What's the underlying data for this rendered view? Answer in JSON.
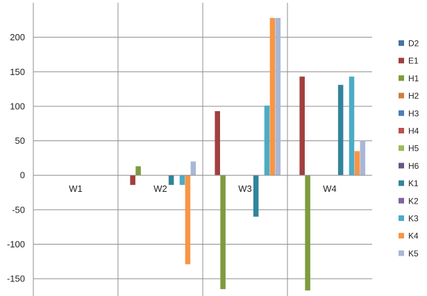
{
  "chart_data": {
    "type": "bar",
    "title": "",
    "xlabel": "",
    "ylabel": "",
    "categories": [
      "W1",
      "W2",
      "W3",
      "W4"
    ],
    "ylim": [
      -175,
      250
    ],
    "yticks": [
      -150,
      -100,
      -50,
      0,
      50,
      100,
      150,
      200
    ],
    "grid": true,
    "legend_position": "right",
    "series": [
      {
        "name": "D2",
        "color": "#4472A8",
        "values": [
          0,
          0,
          0,
          0
        ]
      },
      {
        "name": "E1",
        "color": "#A0403E",
        "values": [
          0,
          -14,
          93,
          143
        ]
      },
      {
        "name": "H1",
        "color": "#7E9B3F",
        "values": [
          0,
          13,
          -165,
          -167
        ]
      },
      {
        "name": "H2",
        "color": "#D47D3C",
        "values": [
          0,
          0,
          0,
          0
        ]
      },
      {
        "name": "H3",
        "color": "#4A7EBB",
        "values": [
          0,
          0,
          0,
          0
        ]
      },
      {
        "name": "H4",
        "color": "#C0504D",
        "values": [
          0,
          0,
          0,
          0
        ]
      },
      {
        "name": "H5",
        "color": "#9BBB59",
        "values": [
          0,
          0,
          0,
          0
        ]
      },
      {
        "name": "H6",
        "color": "#6A5488",
        "values": [
          0,
          0,
          0,
          0
        ]
      },
      {
        "name": "K1",
        "color": "#31849B",
        "values": [
          0,
          -14,
          -60,
          131
        ]
      },
      {
        "name": "K2",
        "color": "#8064A2",
        "values": [
          0,
          0,
          0,
          0
        ]
      },
      {
        "name": "K3",
        "color": "#4BACC6",
        "values": [
          0,
          -14,
          101,
          143
        ]
      },
      {
        "name": "K4",
        "color": "#F79646",
        "values": [
          0,
          -129,
          228,
          35
        ]
      },
      {
        "name": "K5",
        "color": "#A9B7D6",
        "values": [
          0,
          20,
          228,
          50
        ]
      }
    ]
  }
}
